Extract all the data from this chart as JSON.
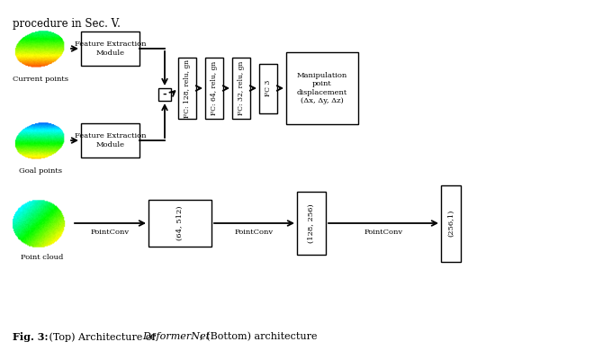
{
  "bg_color": "#ffffff",
  "title_text": "procedure in Sec. V.",
  "top": {
    "current_label": "Current points",
    "goal_label": "Goal points",
    "feat_box_label": "Feature Extraction\nModule",
    "subtract_label": "-",
    "fc_boxes": [
      "FC: 128, relu, gn",
      "FC: 64, relu, gn",
      "FC: 32, relu, gn",
      "FC 3"
    ],
    "output_label": "Manipulation\npoint\ndisplacement\n(Δx, Δy, Δz)"
  },
  "bottom": {
    "cloud_label": "Point cloud",
    "box_labels": [
      "(64, 512)",
      "(128, 256)",
      "(256,1)"
    ],
    "arrow_labels": [
      "PointConv",
      "PointConv",
      "PointConv"
    ]
  },
  "caption_bold": "Fig. 3:",
  "caption_normal": " (Top) Architecture of ",
  "caption_italic": "DeformerNet",
  "caption_end": "; (Bottom) architecture"
}
